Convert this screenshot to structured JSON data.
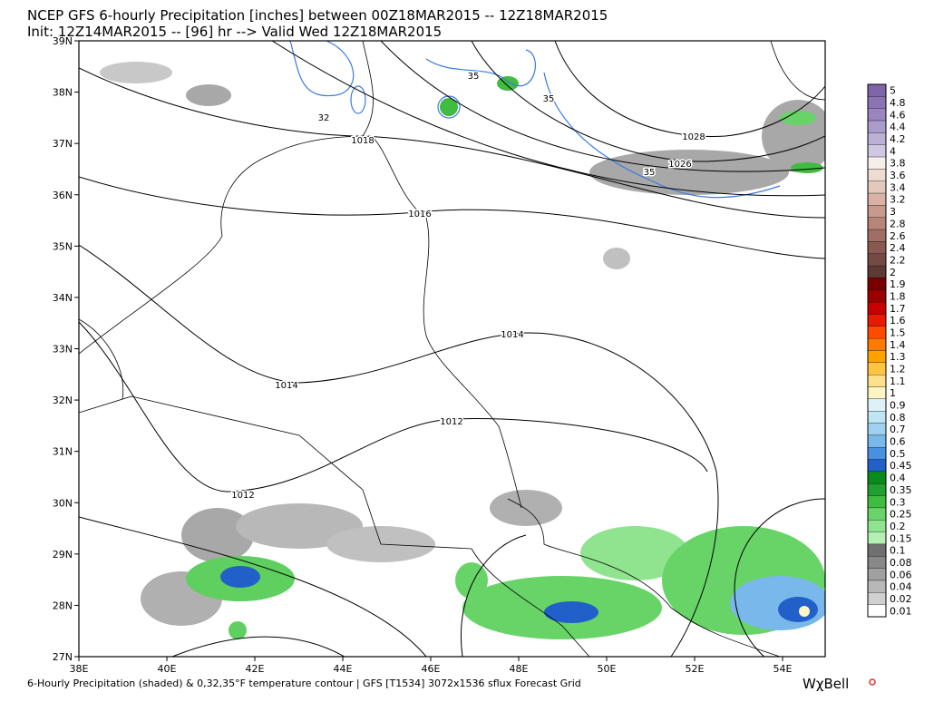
{
  "header": {
    "title": "NCEP GFS 6-hourly Precipitation [inches] between 00Z18MAR2015 -- 12Z18MAR2015",
    "subtitle": "Init: 12Z14MAR2015 -- [96] hr --> Valid Wed 12Z18MAR2015"
  },
  "map": {
    "lat_labels": [
      "39N",
      "38N",
      "37N",
      "36N",
      "35N",
      "34N",
      "33N",
      "32N",
      "31N",
      "30N",
      "29N",
      "28N",
      "27N"
    ],
    "lon_labels": [
      "38E",
      "40E",
      "42E",
      "44E",
      "46E",
      "48E",
      "50E",
      "52E",
      "54E"
    ],
    "contour_labels": [
      "1028",
      "1026",
      "1018",
      "1016",
      "1014",
      "1014",
      "1012",
      "1012",
      "35",
      "35",
      "32",
      "35"
    ]
  },
  "colorbar": {
    "items": [
      {
        "label": "5",
        "color": "#7e66a8"
      },
      {
        "label": "4.8",
        "color": "#8b74b4"
      },
      {
        "label": "4.6",
        "color": "#9a86bf"
      },
      {
        "label": "4.4",
        "color": "#ab9bcb"
      },
      {
        "label": "4.2",
        "color": "#bcb0d7"
      },
      {
        "label": "4",
        "color": "#d0c8e3"
      },
      {
        "label": "3.8",
        "color": "#f6efe8"
      },
      {
        "label": "3.6",
        "color": "#eedcd0"
      },
      {
        "label": "3.4",
        "color": "#e5c8bc"
      },
      {
        "label": "3.2",
        "color": "#d9b2a5"
      },
      {
        "label": "3",
        "color": "#c89a8e"
      },
      {
        "label": "2.8",
        "color": "#b68479"
      },
      {
        "label": "2.6",
        "color": "#a06e64"
      },
      {
        "label": "2.4",
        "color": "#8a5a52"
      },
      {
        "label": "2.2",
        "color": "#744a43"
      },
      {
        "label": "2",
        "color": "#5e3a35"
      },
      {
        "label": "1.9",
        "color": "#7a0000"
      },
      {
        "label": "1.8",
        "color": "#9a0000"
      },
      {
        "label": "1.7",
        "color": "#c80000"
      },
      {
        "label": "1.6",
        "color": "#e81a00"
      },
      {
        "label": "1.5",
        "color": "#ff4a00"
      },
      {
        "label": "1.4",
        "color": "#ff7a00"
      },
      {
        "label": "1.3",
        "color": "#ffa200"
      },
      {
        "label": "1.2",
        "color": "#ffc440"
      },
      {
        "label": "1.1",
        "color": "#ffe08a"
      },
      {
        "label": "1",
        "color": "#fff4c4"
      },
      {
        "label": "0.9",
        "color": "#dcf2f8"
      },
      {
        "label": "0.8",
        "color": "#bfe4f4"
      },
      {
        "label": "0.7",
        "color": "#9fd2f0"
      },
      {
        "label": "0.6",
        "color": "#78b8ea"
      },
      {
        "label": "0.5",
        "color": "#4a90e0"
      },
      {
        "label": "0.45",
        "color": "#2060c8"
      },
      {
        "label": "0.4",
        "color": "#0a8a1a"
      },
      {
        "label": "0.35",
        "color": "#20a030"
      },
      {
        "label": "0.3",
        "color": "#40bc40"
      },
      {
        "label": "0.25",
        "color": "#68d468"
      },
      {
        "label": "0.2",
        "color": "#90e490"
      },
      {
        "label": "0.15",
        "color": "#b4f0b4"
      },
      {
        "label": "0.1",
        "color": "#707070"
      },
      {
        "label": "0.08",
        "color": "#888888"
      },
      {
        "label": "0.06",
        "color": "#a0a0a0"
      },
      {
        "label": "0.04",
        "color": "#b8b8b8"
      },
      {
        "label": "0.02",
        "color": "#d0d0d0"
      },
      {
        "label": "0.01",
        "color": "#ffffff"
      }
    ]
  },
  "footer": {
    "caption": "6-Hourly Precipitation (shaded) & 0,32,35°F temperature contour | GFS [T1534] 3072x1536 sflux Forecast Grid",
    "logo": "WχBell"
  }
}
